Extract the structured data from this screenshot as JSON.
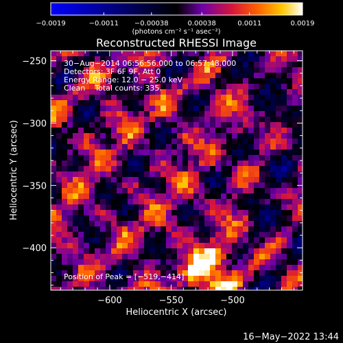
{
  "chart_data": {
    "type": "heatmap",
    "title": "Reconstructed RHESSI Image",
    "xlabel": "Heliocentric X (arcsec)",
    "ylabel": "Heliocentric Y (arcsec)",
    "xlim": [
      -648,
      -443
    ],
    "ylim": [
      -434,
      -242
    ],
    "x_ticks": [
      -600,
      -550,
      -500
    ],
    "x_tick_labels": [
      "−600",
      "−550",
      "−500"
    ],
    "y_ticks": [
      -400,
      -350,
      -300,
      -250
    ],
    "y_tick_labels": [
      "−400",
      "−350",
      "−300",
      "−250"
    ],
    "colorbar": {
      "range": [
        -0.0019,
        0.0019
      ],
      "ticks": [
        -0.0019,
        -0.0011,
        -0.00038,
        0.00038,
        0.0011,
        0.0019
      ],
      "tick_labels": [
        "−0.0019",
        "−0.0011",
        "−0.00038",
        "0.00038",
        "0.0011",
        "0.0019"
      ],
      "units_label": "(photons cm⁻² s⁻¹ asec⁻²)"
    },
    "grid": false,
    "peak": {
      "x": -519,
      "y": -414
    },
    "annotations": {
      "time_range": "30−Aug−2014 06:56:56.000 to 06:57:48.000",
      "detectors": "Detectors: 3F 6F 9F, Att 0",
      "energy": "Energy Range: 12.0 − 25.0 keV",
      "method": "Clean    Total counts: 335.",
      "peak_text": "Position of Peak = [−519,−414]"
    }
  },
  "footer": {
    "timestamp": "16−May−2022 13:44"
  },
  "colors": {
    "background": "#000000",
    "foreground": "#ffffff",
    "colormap": [
      "#0000ff",
      "#000000",
      "#6e00a8",
      "#d7153b",
      "#ff6000",
      "#ffc800",
      "#ffffff"
    ]
  }
}
